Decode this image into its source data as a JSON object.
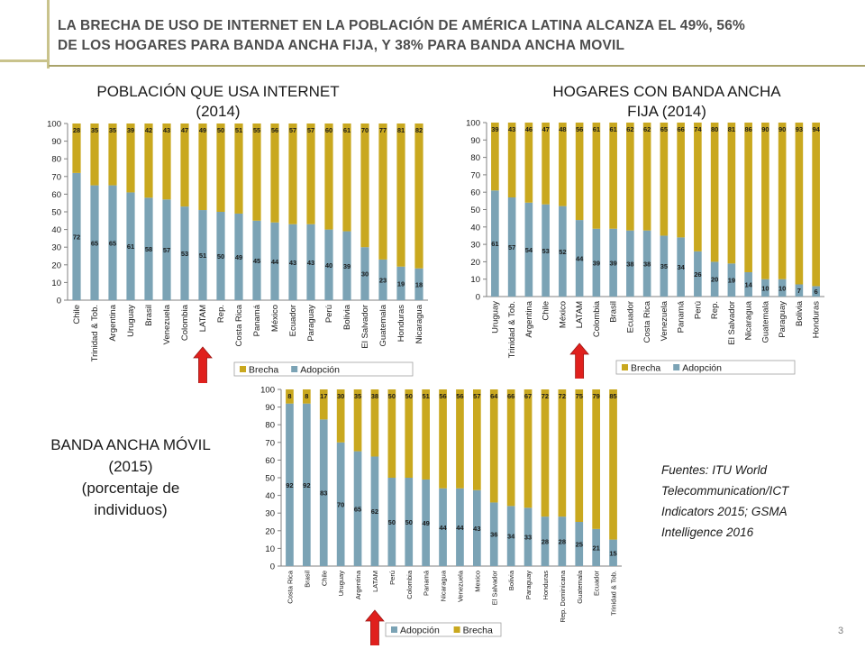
{
  "header": {
    "title_line1": "LA BRECHA DE USO DE INTERNET EN LA POBLACIÓN DE AMÉRICA LATINA ALCANZA EL 49%, 56%",
    "title_line2": "DE LOS HOGARES PARA BANDA ANCHA FIJA, Y 38% PARA BANDA ANCHA MOVIL"
  },
  "colors": {
    "adopcion": "#7ba3b5",
    "brecha": "#c9a81f",
    "arrow": "#e0201d"
  },
  "side_label": {
    "line1": "BANDA ANCHA MÓVIL",
    "line2": "(2015)",
    "line3": "(porcentaje de",
    "line4": "individuos)"
  },
  "sources": {
    "line1": "Fuentes: ITU World",
    "line2": "Telecommunication/ICT",
    "line3": "Indicators 2015; GSMA",
    "line4": "Intelligence 2016"
  },
  "page_number": "3",
  "chart_data": [
    {
      "id": "internet",
      "type": "bar",
      "stacked": true,
      "title_line1": "POBLACIÓN QUE USA INTERNET",
      "title_line2": "(2014)",
      "ylim": [
        0,
        100
      ],
      "yticks": [
        "0",
        "10",
        "20",
        "30",
        "40",
        "50",
        "60",
        "70",
        "80",
        "90",
        "100"
      ],
      "categories": [
        "Chile",
        "Trinidad & Tob.",
        "Argentina",
        "Uruguay",
        "Brasil",
        "Venezuela",
        "Colombia",
        "LATAM",
        "Rep.",
        "Costa Rica",
        "Panamá",
        "México",
        "Ecuador",
        "Paraguay",
        "Perú",
        "Bolivia",
        "El Salvador",
        "Guatemala",
        "Honduras",
        "Nicaragua"
      ],
      "series": [
        {
          "name": "Adopción",
          "values": [
            72,
            65,
            65,
            61,
            58,
            57,
            53,
            51,
            50,
            49,
            45,
            44,
            43,
            43,
            40,
            39,
            30,
            23,
            19,
            18
          ]
        },
        {
          "name": "Brecha",
          "values": [
            28,
            35,
            35,
            39,
            42,
            43,
            47,
            49,
            50,
            51,
            55,
            56,
            57,
            57,
            60,
            61,
            70,
            77,
            81,
            82
          ]
        }
      ],
      "legend": [
        "Brecha",
        "Adopción"
      ],
      "highlight": "LATAM"
    },
    {
      "id": "fija",
      "type": "bar",
      "stacked": true,
      "title_line1": "HOGARES CON BANDA ANCHA",
      "title_line2": "FIJA (2014)",
      "ylim": [
        0,
        100
      ],
      "yticks": [
        "0",
        "10",
        "20",
        "30",
        "40",
        "50",
        "60",
        "70",
        "80",
        "90",
        "100"
      ],
      "categories": [
        "Uruguay",
        "Trinidad & Tob.",
        "Argentina",
        "Chile",
        "México",
        "LATAM",
        "Colombia",
        "Brasil",
        "Ecuador",
        "Costa Rica",
        "Venezuela",
        "Panamá",
        "Perú",
        "Rep.",
        "El Salvador",
        "Nicaragua",
        "Guatemala",
        "Paraguay",
        "Bolivia",
        "Honduras"
      ],
      "series": [
        {
          "name": "Adopción",
          "values": [
            61,
            57,
            54,
            53,
            52,
            44,
            39,
            39,
            38,
            38,
            35,
            34,
            26,
            20,
            19,
            14,
            10,
            10,
            7,
            6
          ]
        },
        {
          "name": "Brecha",
          "values": [
            39,
            43,
            46,
            47,
            48,
            56,
            61,
            61,
            62,
            62,
            65,
            66,
            74,
            80,
            81,
            86,
            90,
            90,
            93,
            94
          ]
        }
      ],
      "legend": [
        "Brecha",
        "Adopción"
      ],
      "highlight": "LATAM"
    },
    {
      "id": "movil",
      "type": "bar",
      "stacked": true,
      "ylim": [
        0,
        100
      ],
      "yticks": [
        "0",
        "10",
        "20",
        "30",
        "40",
        "50",
        "60",
        "70",
        "80",
        "90",
        "100"
      ],
      "categories": [
        "Costa Rica",
        "Brasil",
        "Chile",
        "Uruguay",
        "Argentina",
        "LATAM",
        "Perú",
        "Colombia",
        "Panamá",
        "Nicaragua",
        "Venezuela",
        "Mexico",
        "El Salvador",
        "Bolivia",
        "Paraguay",
        "Honduras",
        "Rep. Dominicana",
        "Guatemala",
        "Ecuador",
        "Trinidad & Tob."
      ],
      "series": [
        {
          "name": "Adopción",
          "values": [
            92,
            92,
            83,
            70,
            65,
            62,
            50,
            50,
            49,
            44,
            44,
            43,
            36,
            34,
            33,
            28,
            28,
            25,
            21,
            15
          ]
        },
        {
          "name": "Brecha",
          "values": [
            8,
            8,
            17,
            30,
            35,
            38,
            50,
            50,
            51,
            56,
            56,
            57,
            64,
            66,
            67,
            72,
            72,
            75,
            79,
            85
          ]
        }
      ],
      "legend": [
        "Adopción",
        "Brecha"
      ],
      "highlight": "LATAM"
    }
  ]
}
